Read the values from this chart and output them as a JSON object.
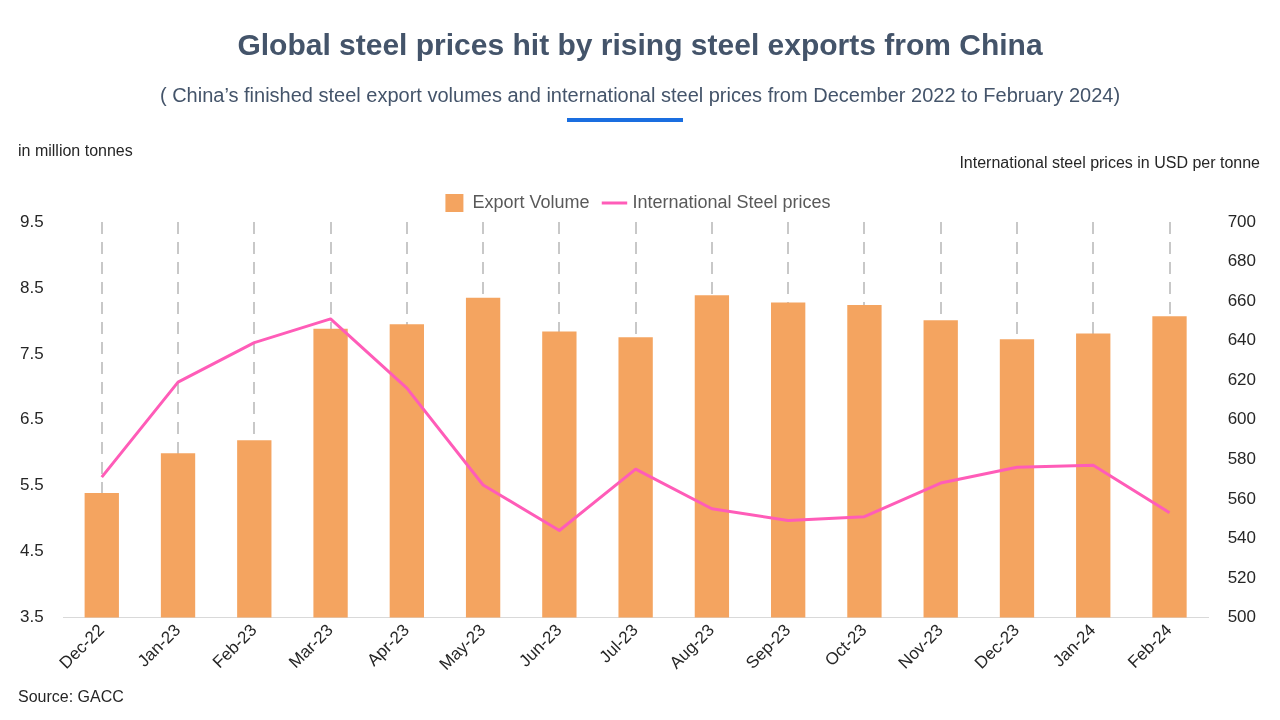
{
  "chart_data": {
    "type": "bar",
    "title": "Global steel prices hit by rising steel exports from China",
    "subtitle": "( China’s finished steel export volumes and international steel prices from December 2022 to February 2024)",
    "ylabel": "in million tonnes",
    "y2label": "International steel prices in USD per tonne",
    "annotations": [
      "Source: GACC"
    ],
    "categories": [
      "Dec-22",
      "Jan-23",
      "Feb-23",
      "Mar-23",
      "Apr-23",
      "May-23",
      "Jun-23",
      "Jul-23",
      "Aug-23",
      "Sep-23",
      "Oct-23",
      "Nov-23",
      "Dec-23",
      "Jan-24",
      "Feb-24"
    ],
    "series": [
      {
        "name": "Export Volume",
        "color": "#f4a460",
        "values": [
          5.39,
          5.99,
          6.19,
          7.88,
          7.95,
          8.35,
          7.84,
          7.75,
          8.39,
          8.28,
          8.24,
          8.01,
          7.72,
          7.81,
          8.07
        ]
      },
      {
        "name": "International Steel prices",
        "type": "line",
        "axis": "y2",
        "color": "#ff5cb8",
        "values": [
          571,
          619,
          639,
          651,
          616,
          567,
          544,
          575,
          555,
          549,
          551,
          568,
          576,
          577,
          553
        ]
      }
    ],
    "ylim": [
      3.5,
      9.5
    ],
    "yticks": [
      3.5,
      4.5,
      5.5,
      6.5,
      7.5,
      8.5,
      9.5
    ],
    "y2lim": [
      500,
      700
    ],
    "y2ticks": [
      500,
      520,
      540,
      560,
      580,
      600,
      620,
      640,
      660,
      680,
      700
    ],
    "grid": "x",
    "legend": "top",
    "marker": "none",
    "line_style": "solid"
  }
}
